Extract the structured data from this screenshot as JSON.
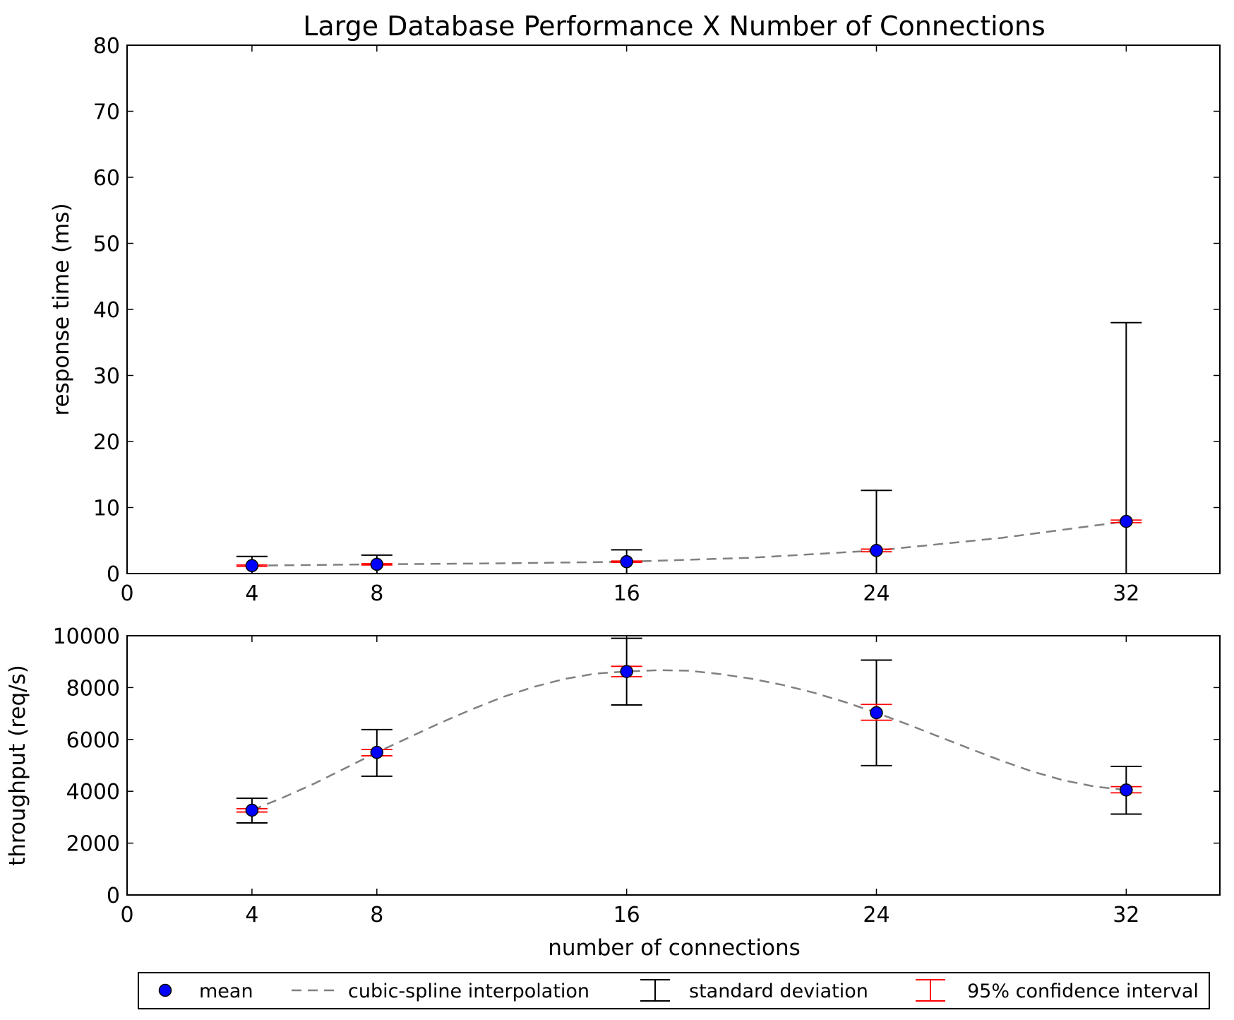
{
  "title": "Large Database Performance X Number of Connections",
  "xlabel": "number of connections",
  "legend": {
    "placement": "bottom-center",
    "entries": [
      {
        "key": "mean",
        "label": "mean"
      },
      {
        "key": "spline",
        "label": "cubic-spline interpolation"
      },
      {
        "key": "std",
        "label": "standard deviation"
      },
      {
        "key": "ci",
        "label": "95% confidence interval"
      }
    ]
  },
  "colors": {
    "mean_fill": "#0000ff",
    "mean_edge": "#000000",
    "spline": "#808080",
    "std": "#000000",
    "ci": "#ff0000"
  },
  "chart_data": [
    {
      "type": "scatter",
      "title": "Large Database Performance X Number of Connections",
      "xlabel": "",
      "ylabel": "response time (ms)",
      "xlim": [
        0,
        35
      ],
      "ylim": [
        0,
        80
      ],
      "xticks": [
        0,
        4,
        8,
        16,
        24,
        32
      ],
      "yticks": [
        0,
        10,
        20,
        30,
        40,
        50,
        60,
        70,
        80
      ],
      "grid": false,
      "x": [
        4,
        8,
        16,
        24,
        32
      ],
      "mean": [
        1.2,
        1.4,
        1.8,
        3.5,
        7.9
      ],
      "std_low": [
        0.0,
        0.0,
        0.0,
        0.0,
        0.0
      ],
      "std_high": [
        2.6,
        2.8,
        3.6,
        12.6,
        38.0
      ],
      "ci_low": [
        1.1,
        1.3,
        1.7,
        3.3,
        7.7
      ],
      "ci_high": [
        1.3,
        1.5,
        1.9,
        3.7,
        8.1
      ],
      "spline": [
        [
          4,
          1.2
        ],
        [
          6,
          1.3
        ],
        [
          8,
          1.4
        ],
        [
          12,
          1.55
        ],
        [
          16,
          1.8
        ],
        [
          20,
          2.4
        ],
        [
          24,
          3.5
        ],
        [
          28,
          5.4
        ],
        [
          32,
          7.9
        ]
      ]
    },
    {
      "type": "scatter",
      "xlabel": "number of connections",
      "ylabel": "throughput (req/s)",
      "xlim": [
        0,
        35
      ],
      "ylim": [
        0,
        10000
      ],
      "xticks": [
        0,
        4,
        8,
        16,
        24,
        32
      ],
      "yticks": [
        0,
        2000,
        4000,
        6000,
        8000,
        10000
      ],
      "grid": false,
      "x": [
        4,
        8,
        16,
        24,
        32
      ],
      "mean": [
        3270,
        5500,
        8620,
        7030,
        4050
      ],
      "std_low": [
        2780,
        4580,
        7330,
        4990,
        3120
      ],
      "std_high": [
        3730,
        6380,
        9900,
        9060,
        4960
      ],
      "ci_low": [
        3200,
        5370,
        8420,
        6740,
        3940
      ],
      "ci_high": [
        3330,
        5610,
        8820,
        7350,
        4180
      ],
      "spline": [
        [
          4,
          3270
        ],
        [
          5,
          3760
        ],
        [
          6,
          4300
        ],
        [
          7,
          4900
        ],
        [
          8,
          5500
        ],
        [
          9,
          6060
        ],
        [
          10,
          6620
        ],
        [
          11,
          7140
        ],
        [
          12,
          7620
        ],
        [
          13,
          8020
        ],
        [
          14,
          8330
        ],
        [
          15,
          8540
        ],
        [
          16,
          8620
        ],
        [
          17,
          8670
        ],
        [
          18,
          8650
        ],
        [
          19,
          8520
        ],
        [
          20,
          8340
        ],
        [
          21,
          8100
        ],
        [
          22,
          7800
        ],
        [
          23,
          7440
        ],
        [
          24,
          7030
        ],
        [
          25,
          6580
        ],
        [
          26,
          6110
        ],
        [
          27,
          5640
        ],
        [
          28,
          5180
        ],
        [
          29,
          4760
        ],
        [
          30,
          4420
        ],
        [
          31,
          4180
        ],
        [
          32,
          4050
        ]
      ]
    }
  ]
}
